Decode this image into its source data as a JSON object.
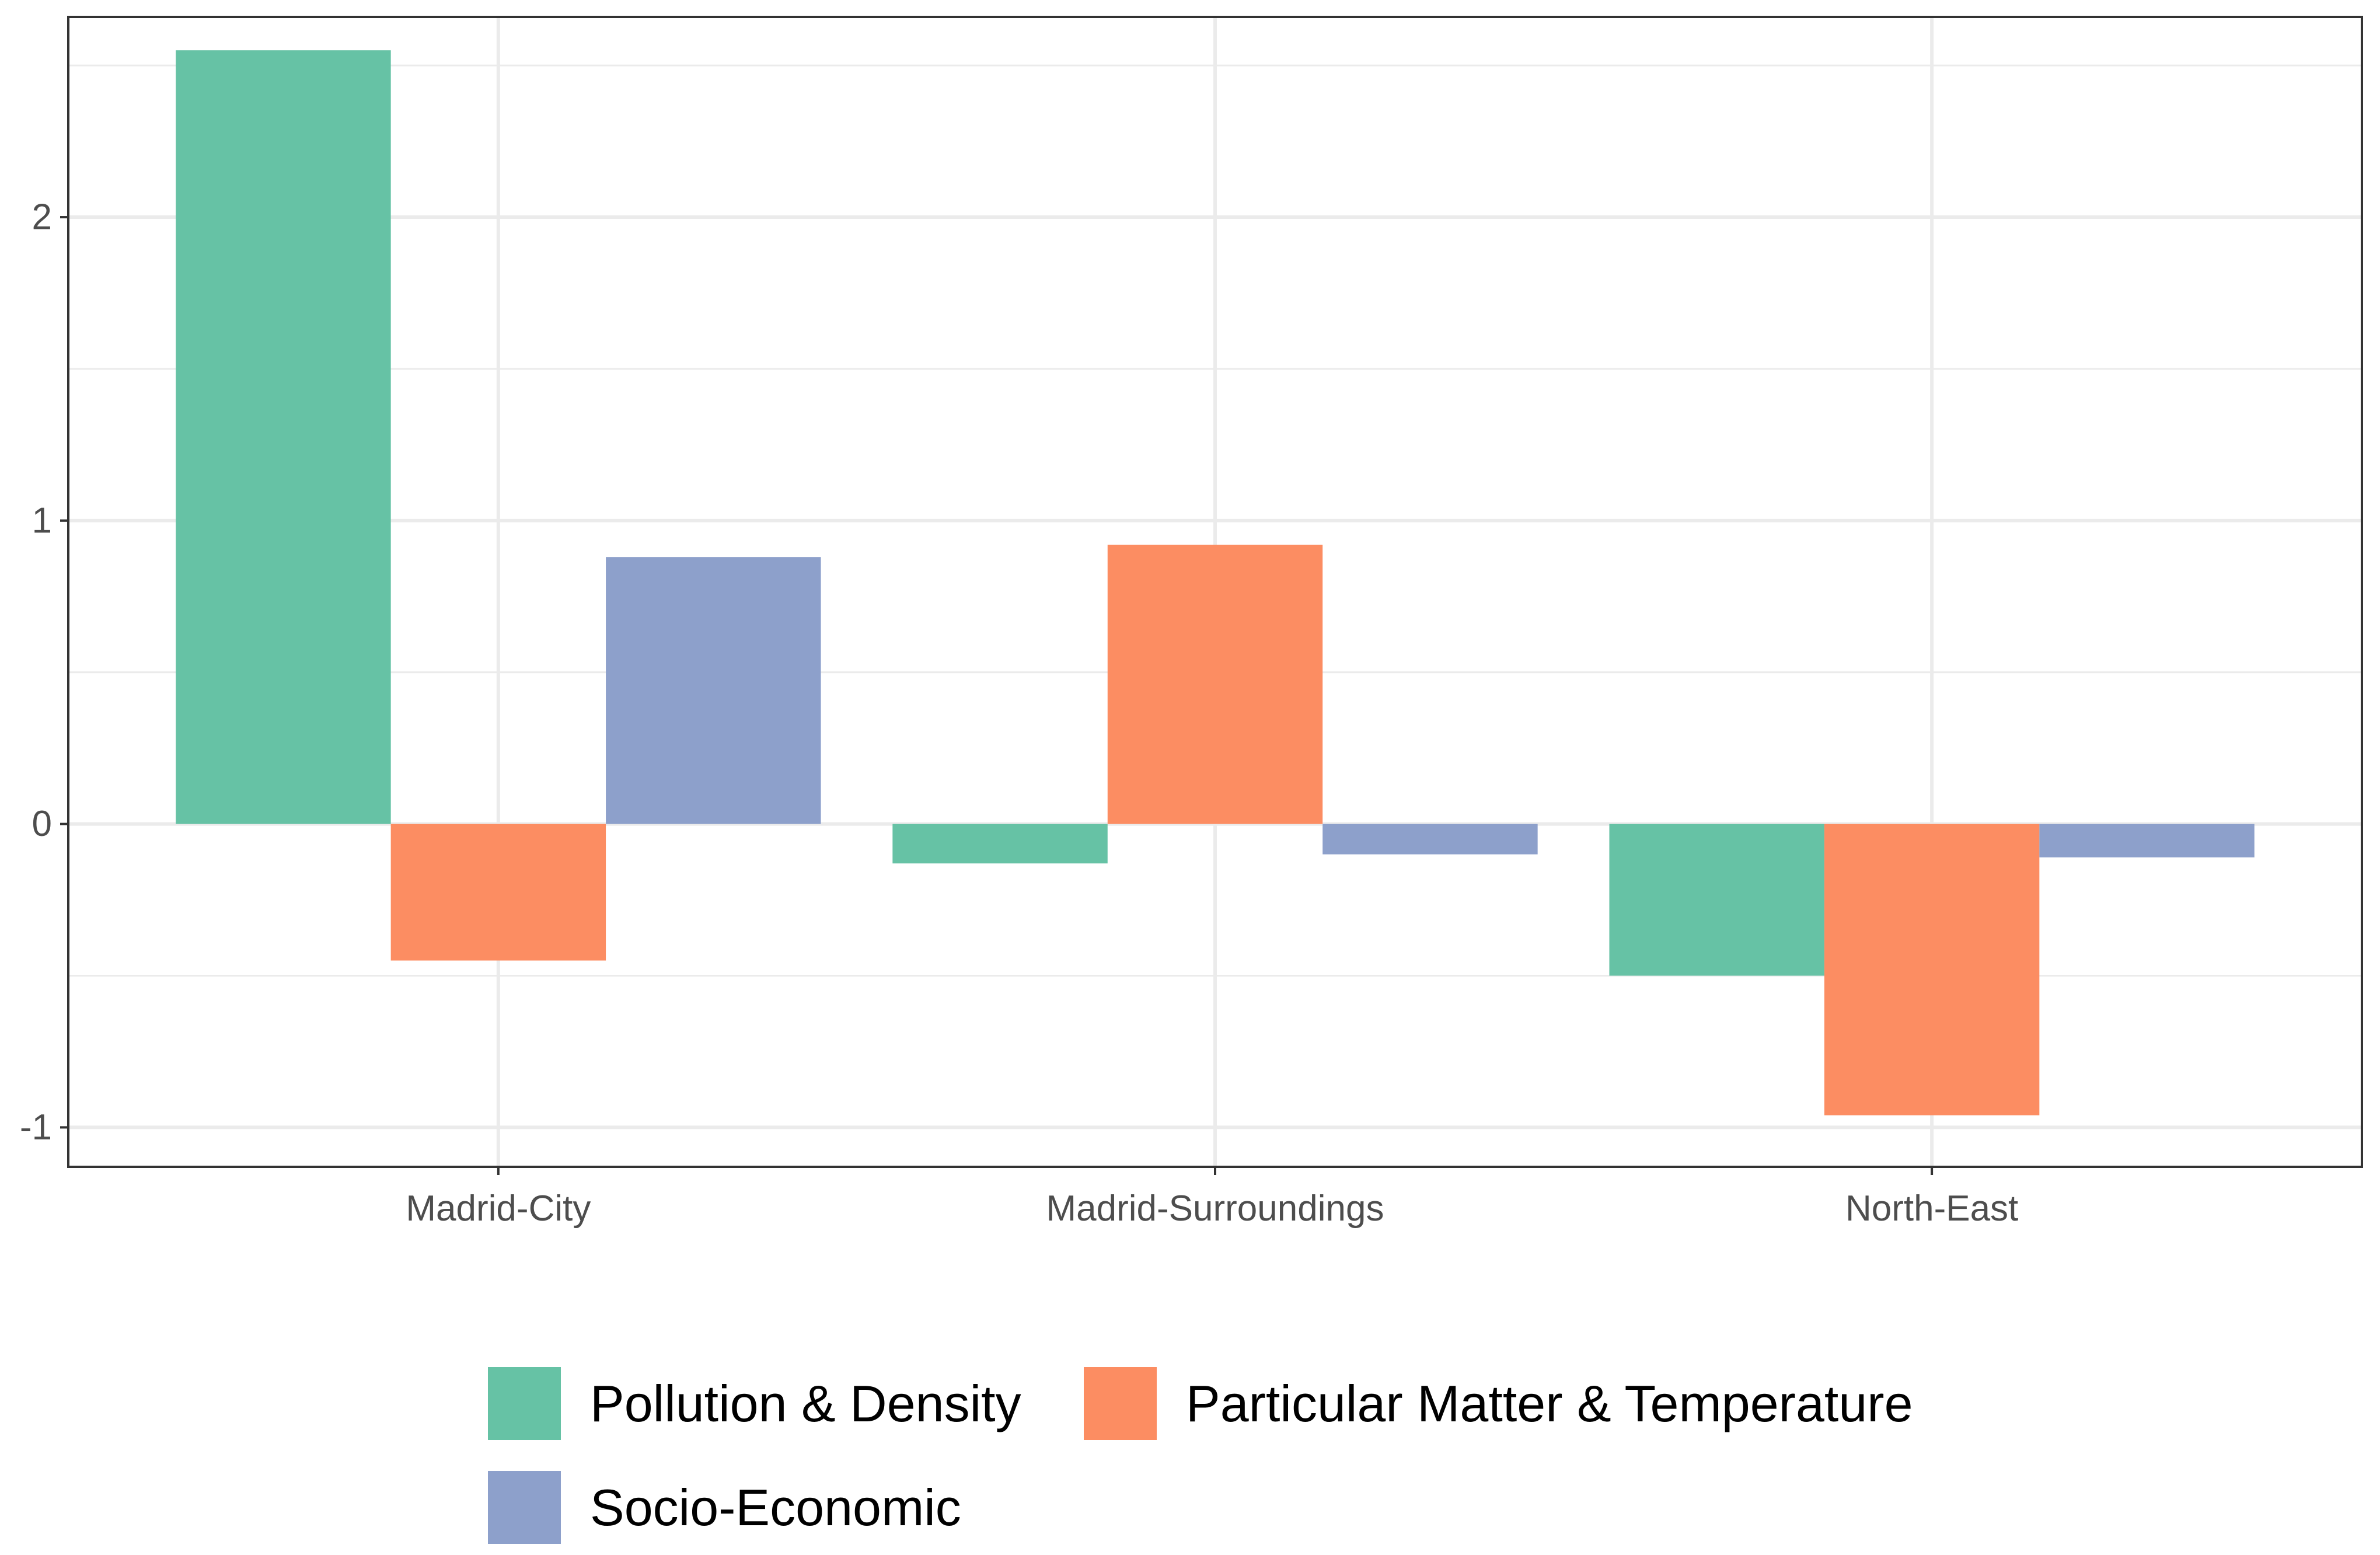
{
  "chart_data": {
    "type": "bar",
    "title": "",
    "xlabel": "",
    "ylabel": "",
    "categories": [
      "Madrid-City",
      "Madrid-Surroundings",
      "North-East"
    ],
    "series": [
      {
        "name": "Pollution & Density",
        "color": "#66c2a5",
        "values": [
          2.55,
          -0.13,
          -0.5
        ]
      },
      {
        "name": "Particular Matter & Temperature",
        "color": "#fc8d62",
        "values": [
          -0.45,
          0.92,
          -0.96
        ]
      },
      {
        "name": "Socio-Economic",
        "color": "#8da0cb",
        "values": [
          0.88,
          -0.1,
          -0.11
        ]
      }
    ],
    "ylim": [
      -1.13,
      2.66
    ],
    "yticks": [
      -1,
      0,
      1,
      2
    ],
    "ytick_labels": [
      "-1",
      "0",
      "1",
      "2"
    ],
    "minor_yticks": [
      -0.5,
      0.5,
      1.5,
      2.5
    ],
    "grid": true,
    "legend_position": "bottom"
  }
}
